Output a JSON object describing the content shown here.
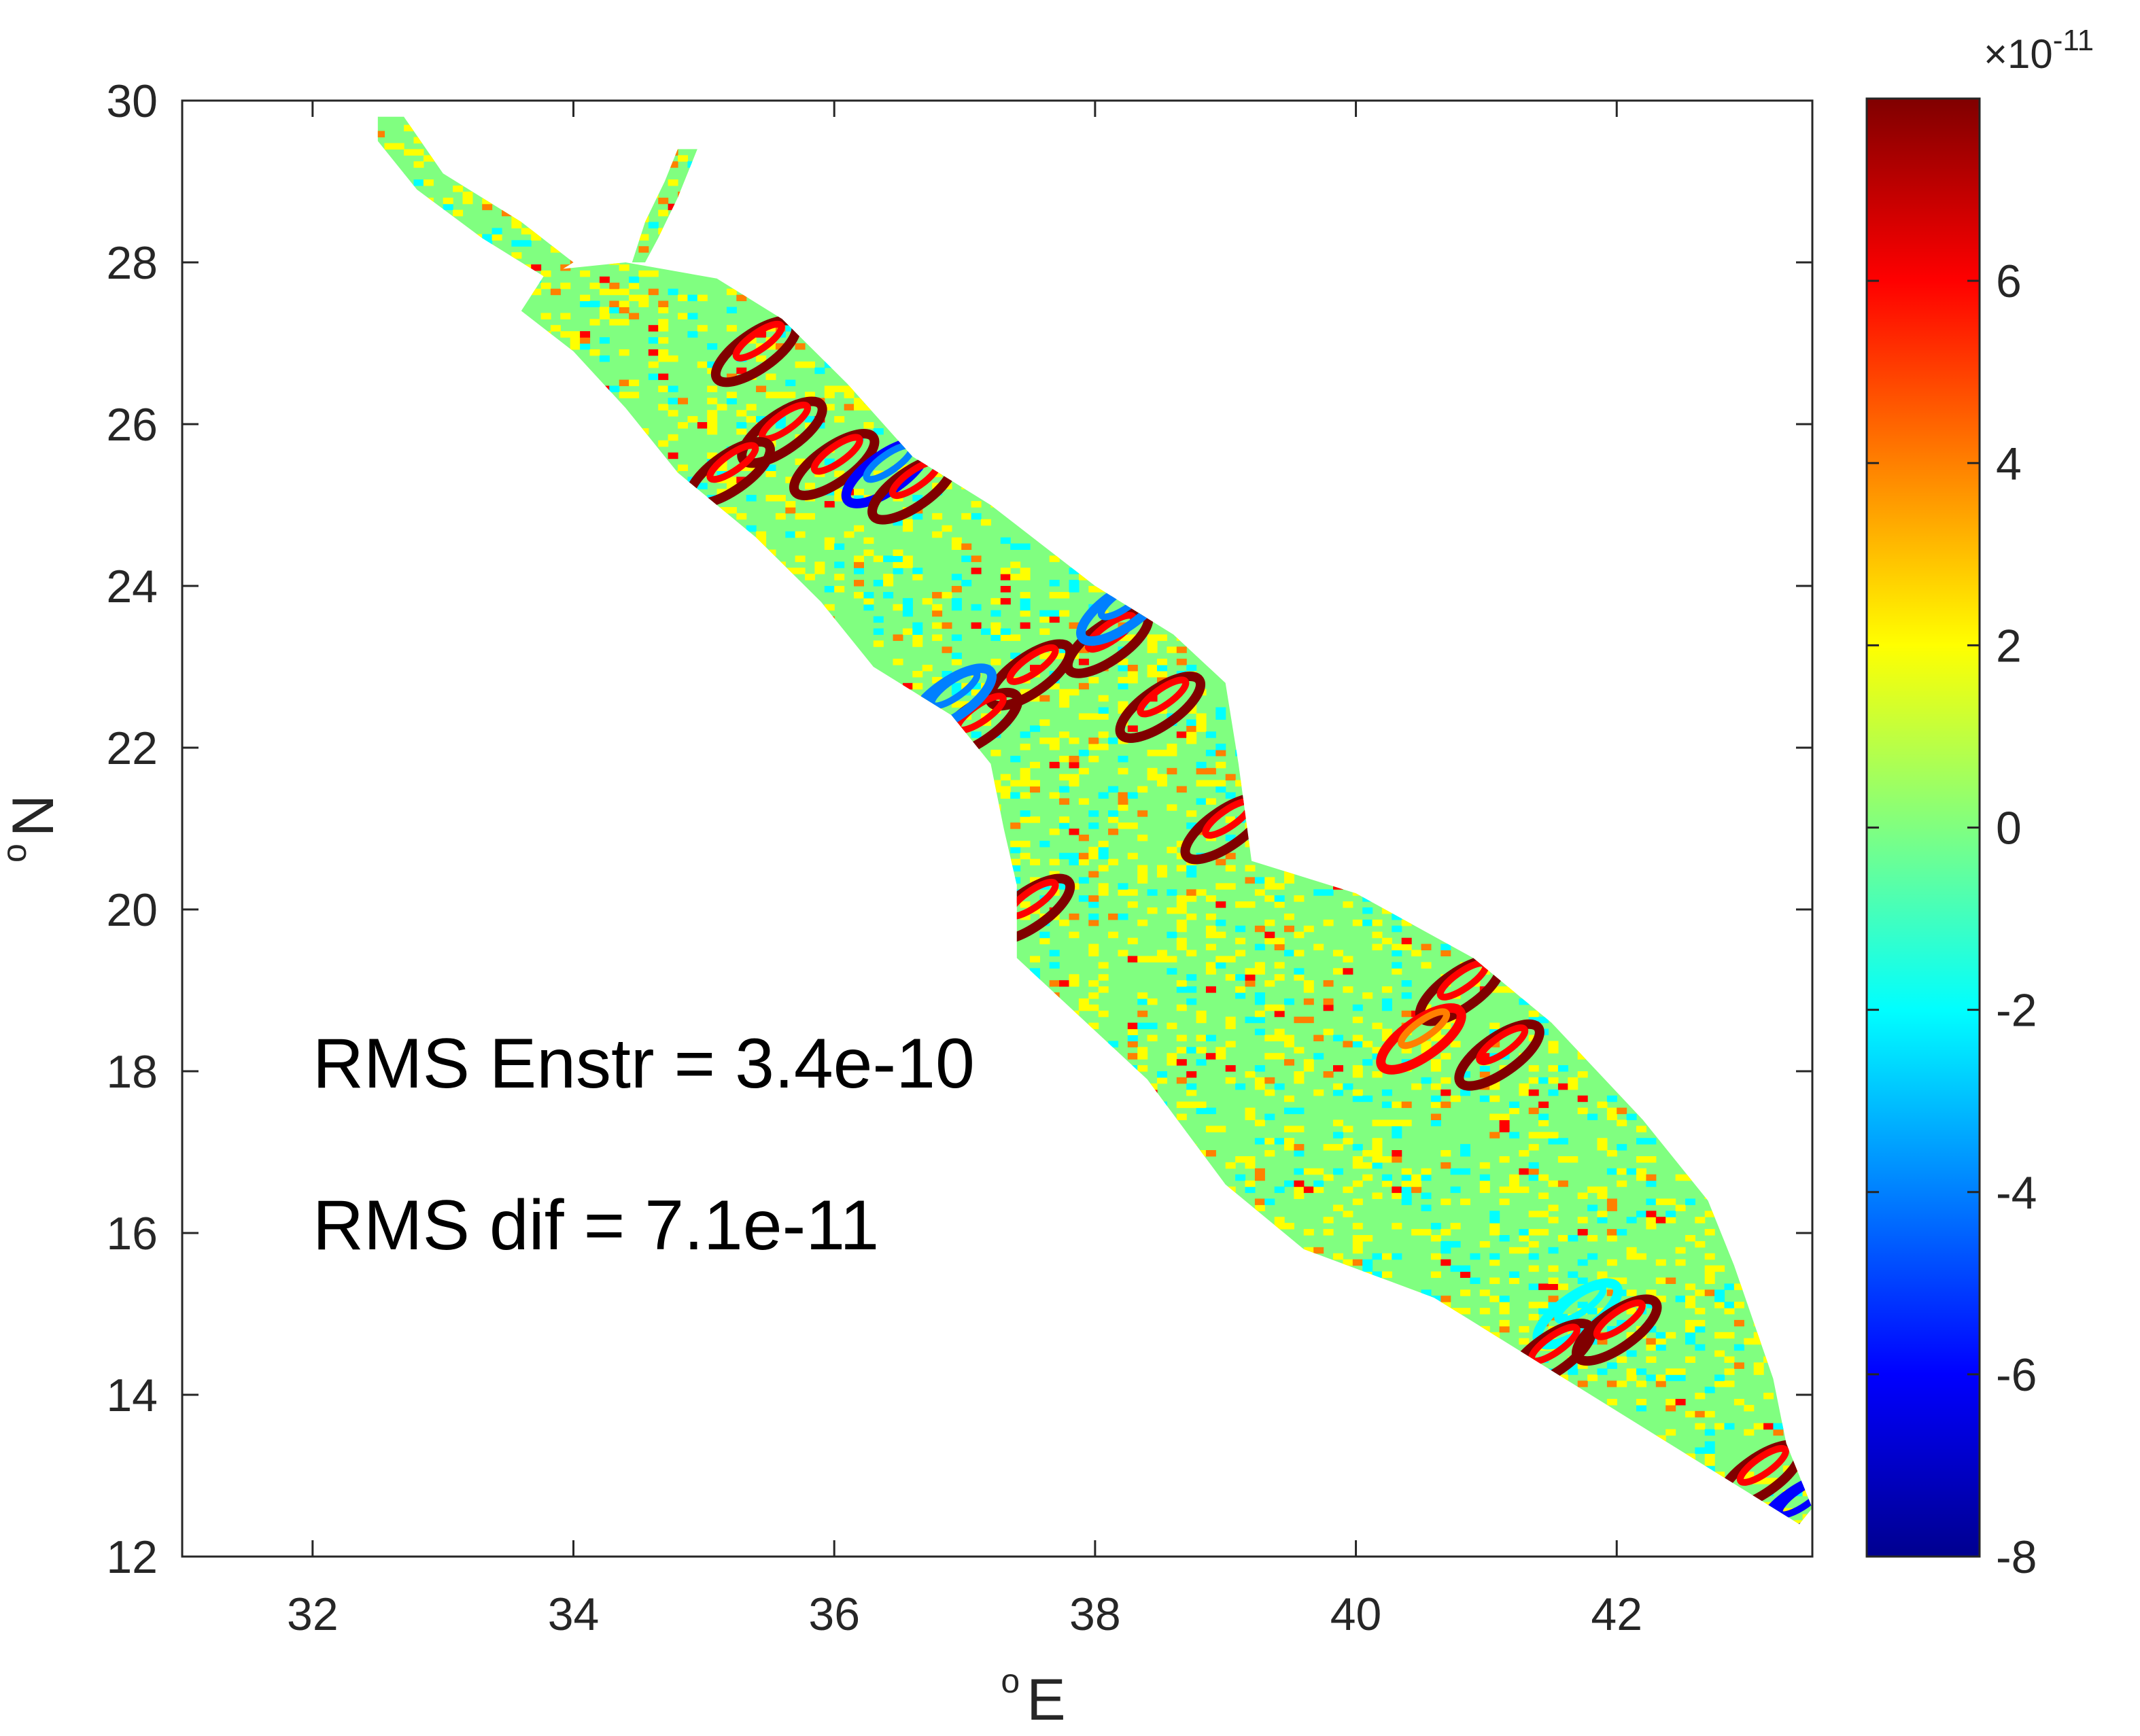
{
  "chart_data": {
    "type": "heatmap",
    "title": "",
    "xlabel": {
      "sup": "o",
      "main": "E"
    },
    "ylabel": {
      "sup": "o",
      "main": "N"
    },
    "xlim": [
      31,
      43.5
    ],
    "ylim": [
      12,
      30
    ],
    "x_ticks": [
      32,
      34,
      36,
      38,
      40,
      42
    ],
    "y_ticks": [
      12,
      14,
      16,
      18,
      20,
      22,
      24,
      26,
      28,
      30
    ],
    "colorbar": {
      "colormap": "jet",
      "range": [
        -8,
        8
      ],
      "ticks": [
        -8,
        -6,
        -4,
        -2,
        0,
        2,
        4,
        6
      ],
      "exponent_base": "×10",
      "exponent": "-11"
    },
    "annotations": [
      {
        "lon": 32,
        "lat": 17.8,
        "text": "RMS Enstr = 3.4e-10"
      },
      {
        "lon": 32,
        "lat": 15.8,
        "text": "RMS dif = 7.1e-11"
      }
    ],
    "colors": {
      "background_value": "#80ff80",
      "jet": [
        "#00008f",
        "#0000ff",
        "#0080ff",
        "#00ffff",
        "#80ff80",
        "#ffff00",
        "#ff8000",
        "#ff0000",
        "#800000"
      ]
    },
    "basin_outline": {
      "description_free": true,
      "main_channel": [
        [
          35.1,
          27.8
        ],
        [
          35.6,
          27.3
        ],
        [
          36.1,
          26.5
        ],
        [
          36.6,
          25.6
        ],
        [
          37.2,
          25.0
        ],
        [
          38.0,
          24.0
        ],
        [
          38.6,
          23.4
        ],
        [
          39.0,
          22.8
        ],
        [
          39.1,
          21.8
        ],
        [
          39.2,
          20.6
        ],
        [
          40.0,
          20.2
        ],
        [
          40.9,
          19.4
        ],
        [
          41.5,
          18.6
        ],
        [
          42.2,
          17.4
        ],
        [
          42.7,
          16.4
        ],
        [
          42.9,
          15.6
        ],
        [
          43.2,
          14.2
        ],
        [
          43.3,
          13.4
        ],
        [
          43.5,
          12.6
        ],
        [
          43.4,
          12.4
        ],
        [
          42.6,
          13.2
        ],
        [
          41.6,
          14.2
        ],
        [
          40.6,
          15.2
        ],
        [
          39.6,
          15.8
        ],
        [
          39.0,
          16.6
        ],
        [
          38.4,
          17.9
        ],
        [
          37.8,
          18.8
        ],
        [
          37.4,
          19.4
        ],
        [
          37.4,
          20.3
        ],
        [
          37.3,
          21.0
        ],
        [
          37.2,
          21.8
        ],
        [
          36.9,
          22.4
        ],
        [
          36.3,
          23.0
        ],
        [
          35.9,
          23.8
        ],
        [
          35.4,
          24.6
        ],
        [
          34.8,
          25.4
        ],
        [
          34.4,
          26.2
        ],
        [
          34.0,
          26.9
        ],
        [
          33.6,
          27.4
        ],
        [
          33.8,
          27.9
        ],
        [
          34.4,
          28.0
        ]
      ],
      "gulf_of_suez": [
        [
          32.5,
          29.8
        ],
        [
          32.7,
          29.8
        ],
        [
          33.0,
          29.1
        ],
        [
          33.6,
          28.5
        ],
        [
          34.0,
          28.0
        ],
        [
          33.8,
          27.8
        ],
        [
          33.3,
          28.3
        ],
        [
          32.8,
          28.9
        ],
        [
          32.5,
          29.5
        ]
      ],
      "gulf_of_aqaba": [
        [
          34.8,
          29.4
        ],
        [
          34.95,
          29.4
        ],
        [
          34.8,
          28.8
        ],
        [
          34.65,
          28.3
        ],
        [
          34.55,
          28.0
        ],
        [
          34.45,
          28.0
        ],
        [
          34.55,
          28.5
        ],
        [
          34.7,
          29.0
        ]
      ]
    },
    "hotspots": [
      {
        "lon": 35.4,
        "lat": 26.9,
        "value": 8
      },
      {
        "lon": 35.6,
        "lat": 25.9,
        "value": 8
      },
      {
        "lon": 36.0,
        "lat": 25.5,
        "value": 7
      },
      {
        "lon": 36.4,
        "lat": 25.4,
        "value": -6
      },
      {
        "lon": 36.6,
        "lat": 25.2,
        "value": 8
      },
      {
        "lon": 35.2,
        "lat": 25.4,
        "value": 8
      },
      {
        "lon": 38.1,
        "lat": 23.3,
        "value": 8
      },
      {
        "lon": 37.5,
        "lat": 22.9,
        "value": 8
      },
      {
        "lon": 37.1,
        "lat": 22.3,
        "value": 8
      },
      {
        "lon": 36.9,
        "lat": 22.6,
        "value": -4
      },
      {
        "lon": 38.2,
        "lat": 23.7,
        "value": -5
      },
      {
        "lon": 38.5,
        "lat": 22.5,
        "value": 7
      },
      {
        "lon": 39.0,
        "lat": 21.0,
        "value": 8
      },
      {
        "lon": 37.5,
        "lat": 20.0,
        "value": 7
      },
      {
        "lon": 40.8,
        "lat": 19.0,
        "value": 8
      },
      {
        "lon": 40.5,
        "lat": 18.4,
        "value": 6
      },
      {
        "lon": 41.1,
        "lat": 18.2,
        "value": 8
      },
      {
        "lon": 41.7,
        "lat": 15.0,
        "value": -3
      },
      {
        "lon": 41.5,
        "lat": 14.5,
        "value": 8
      },
      {
        "lon": 42.0,
        "lat": 14.8,
        "value": 7
      },
      {
        "lon": 43.1,
        "lat": 13.0,
        "value": 8
      },
      {
        "lon": 43.4,
        "lat": 12.6,
        "value": -7
      }
    ]
  }
}
